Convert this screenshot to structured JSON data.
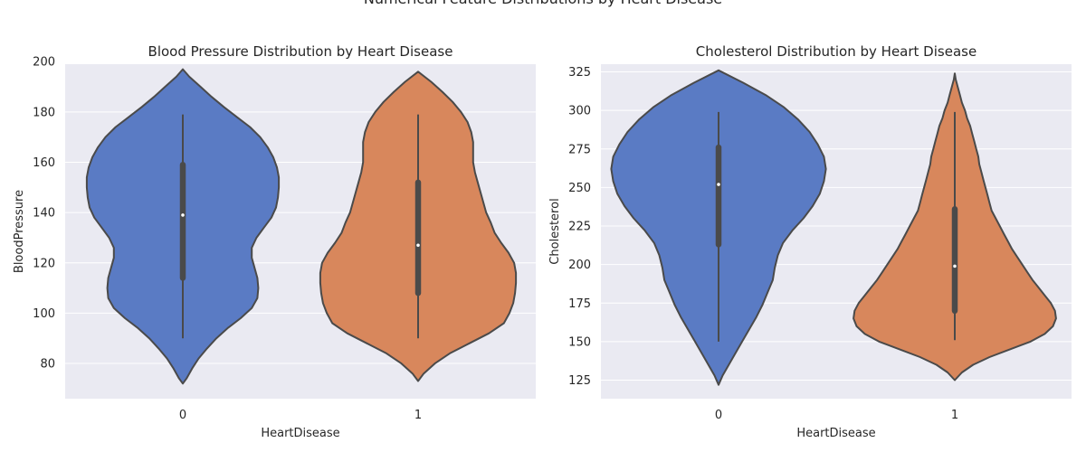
{
  "suptitle": "Numerical Feature Distributions by Heart Disease",
  "chart_data": [
    {
      "type": "violin",
      "title": "Blood Pressure Distribution by Heart Disease",
      "xlabel": "HeartDisease",
      "ylabel": "BloodPressure",
      "categories": [
        "0",
        "1"
      ],
      "ylim": [
        66,
        199
      ],
      "yticks": [
        80,
        100,
        120,
        140,
        160,
        180,
        200
      ],
      "grid": true,
      "series": [
        {
          "category": "0",
          "color": "#5a7bc4",
          "min": 90,
          "q1": 114,
          "median": 139,
          "q3": 159,
          "max": 179,
          "profile": [
            [
              72,
              0.0
            ],
            [
              74,
              0.04
            ],
            [
              78,
              0.1
            ],
            [
              82,
              0.17
            ],
            [
              86,
              0.26
            ],
            [
              90,
              0.36
            ],
            [
              94,
              0.48
            ],
            [
              98,
              0.62
            ],
            [
              102,
              0.74
            ],
            [
              106,
              0.8
            ],
            [
              110,
              0.81
            ],
            [
              114,
              0.8
            ],
            [
              118,
              0.77
            ],
            [
              122,
              0.74
            ],
            [
              126,
              0.74
            ],
            [
              130,
              0.79
            ],
            [
              134,
              0.87
            ],
            [
              138,
              0.95
            ],
            [
              142,
              1.0
            ],
            [
              146,
              1.02
            ],
            [
              150,
              1.03
            ],
            [
              154,
              1.03
            ],
            [
              158,
              1.01
            ],
            [
              162,
              0.97
            ],
            [
              166,
              0.91
            ],
            [
              170,
              0.83
            ],
            [
              174,
              0.72
            ],
            [
              178,
              0.58
            ],
            [
              182,
              0.44
            ],
            [
              186,
              0.31
            ],
            [
              190,
              0.19
            ],
            [
              194,
              0.07
            ],
            [
              197,
              0.0
            ]
          ]
        },
        {
          "category": "1",
          "color": "#d8875c",
          "min": 90,
          "q1": 108,
          "median": 127,
          "q3": 152,
          "max": 179,
          "profile": [
            [
              73,
              0.0
            ],
            [
              76,
              0.06
            ],
            [
              80,
              0.18
            ],
            [
              84,
              0.34
            ],
            [
              88,
              0.55
            ],
            [
              92,
              0.76
            ],
            [
              96,
              0.92
            ],
            [
              100,
              0.98
            ],
            [
              104,
              1.02
            ],
            [
              108,
              1.04
            ],
            [
              112,
              1.05
            ],
            [
              116,
              1.05
            ],
            [
              120,
              1.03
            ],
            [
              124,
              0.97
            ],
            [
              128,
              0.89
            ],
            [
              132,
              0.82
            ],
            [
              136,
              0.78
            ],
            [
              140,
              0.73
            ],
            [
              144,
              0.7
            ],
            [
              148,
              0.67
            ],
            [
              152,
              0.64
            ],
            [
              156,
              0.61
            ],
            [
              160,
              0.59
            ],
            [
              164,
              0.59
            ],
            [
              168,
              0.59
            ],
            [
              172,
              0.57
            ],
            [
              176,
              0.53
            ],
            [
              180,
              0.46
            ],
            [
              184,
              0.37
            ],
            [
              188,
              0.26
            ],
            [
              192,
              0.14
            ],
            [
              196,
              0.0
            ]
          ]
        }
      ]
    },
    {
      "type": "violin",
      "title": "Cholesterol Distribution by Heart Disease",
      "xlabel": "HeartDisease",
      "ylabel": "Cholesterol",
      "categories": [
        "0",
        "1"
      ],
      "ylim": [
        113,
        330
      ],
      "yticks": [
        125,
        150,
        175,
        200,
        225,
        250,
        275,
        300,
        325
      ],
      "grid": true,
      "series": [
        {
          "category": "0",
          "color": "#5a7bc4",
          "min": 150,
          "q1": 213,
          "median": 252,
          "q3": 276,
          "max": 299,
          "profile": [
            [
              122,
              0.0
            ],
            [
              128,
              0.04
            ],
            [
              135,
              0.1
            ],
            [
              142,
              0.16
            ],
            [
              150,
              0.23
            ],
            [
              158,
              0.3
            ],
            [
              166,
              0.37
            ],
            [
              174,
              0.43
            ],
            [
              182,
              0.48
            ],
            [
              190,
              0.53
            ],
            [
              198,
              0.55
            ],
            [
              206,
              0.58
            ],
            [
              214,
              0.63
            ],
            [
              222,
              0.72
            ],
            [
              230,
              0.83
            ],
            [
              238,
              0.92
            ],
            [
              246,
              0.99
            ],
            [
              254,
              1.03
            ],
            [
              262,
              1.05
            ],
            [
              270,
              1.03
            ],
            [
              278,
              0.97
            ],
            [
              286,
              0.89
            ],
            [
              294,
              0.78
            ],
            [
              302,
              0.64
            ],
            [
              310,
              0.46
            ],
            [
              318,
              0.24
            ],
            [
              326,
              0.0
            ]
          ]
        },
        {
          "category": "1",
          "color": "#d8875c",
          "min": 151,
          "q1": 170,
          "median": 199,
          "q3": 236,
          "max": 299,
          "profile": [
            [
              125,
              0.0
            ],
            [
              130,
              0.07
            ],
            [
              135,
              0.18
            ],
            [
              140,
              0.34
            ],
            [
              145,
              0.54
            ],
            [
              150,
              0.74
            ],
            [
              155,
              0.88
            ],
            [
              160,
              0.96
            ],
            [
              165,
              0.99
            ],
            [
              170,
              0.98
            ],
            [
              175,
              0.94
            ],
            [
              180,
              0.88
            ],
            [
              185,
              0.82
            ],
            [
              190,
              0.76
            ],
            [
              195,
              0.71
            ],
            [
              200,
              0.66
            ],
            [
              205,
              0.61
            ],
            [
              210,
              0.56
            ],
            [
              215,
              0.52
            ],
            [
              220,
              0.48
            ],
            [
              225,
              0.44
            ],
            [
              230,
              0.4
            ],
            [
              235,
              0.36
            ],
            [
              240,
              0.34
            ],
            [
              245,
              0.32
            ],
            [
              250,
              0.3
            ],
            [
              255,
              0.28
            ],
            [
              260,
              0.26
            ],
            [
              265,
              0.24
            ],
            [
              270,
              0.23
            ],
            [
              275,
              0.21
            ],
            [
              280,
              0.19
            ],
            [
              285,
              0.17
            ],
            [
              290,
              0.15
            ],
            [
              295,
              0.12
            ],
            [
              300,
              0.1
            ],
            [
              305,
              0.07
            ],
            [
              310,
              0.05
            ],
            [
              315,
              0.03
            ],
            [
              320,
              0.01
            ],
            [
              324,
              0.0
            ]
          ]
        }
      ]
    }
  ]
}
